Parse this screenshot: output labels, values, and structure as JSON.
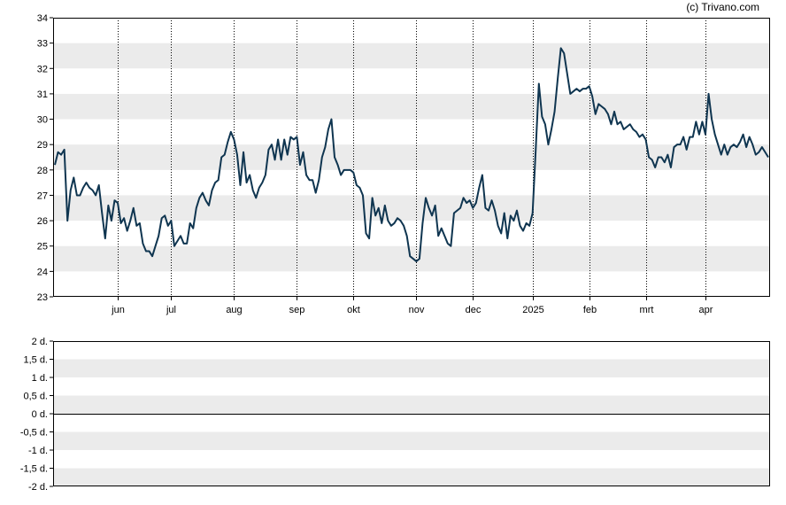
{
  "credit": "(c) Trivano.com",
  "colors": {
    "line": "#0f3550",
    "band": "#ebebeb",
    "grid": "#000000",
    "axis": "#000000",
    "background": "#ffffff"
  },
  "chart_data": [
    {
      "type": "line",
      "title": "",
      "xlabel": "",
      "ylabel": "",
      "ylim": [
        23,
        34
      ],
      "yticks": [
        "23",
        "24",
        "25",
        "26",
        "27",
        "28",
        "29",
        "30",
        "31",
        "32",
        "33",
        "34"
      ],
      "xticks": [
        {
          "label": "jun",
          "index": 20
        },
        {
          "label": "jul",
          "index": 37
        },
        {
          "label": "aug",
          "index": 57
        },
        {
          "label": "sep",
          "index": 77
        },
        {
          "label": "okt",
          "index": 95
        },
        {
          "label": "nov",
          "index": 115
        },
        {
          "label": "dec",
          "index": 133
        },
        {
          "label": "2025",
          "index": 152
        },
        {
          "label": "feb",
          "index": 170
        },
        {
          "label": "mrt",
          "index": 188
        },
        {
          "label": "apr",
          "index": 207
        }
      ],
      "grid": true,
      "legend": "none",
      "series": [
        {
          "values": [
            28.2,
            28.7,
            28.6,
            28.8,
            26.0,
            27.2,
            27.7,
            27.0,
            27.0,
            27.3,
            27.5,
            27.3,
            27.2,
            27.0,
            27.4,
            26.3,
            25.3,
            26.6,
            26.0,
            26.8,
            26.7,
            25.9,
            26.1,
            25.6,
            26.0,
            26.5,
            25.8,
            25.9,
            25.1,
            24.8,
            24.8,
            24.6,
            25.0,
            25.4,
            26.1,
            26.2,
            25.8,
            26.0,
            25.0,
            25.2,
            25.4,
            25.1,
            25.1,
            25.9,
            25.7,
            26.5,
            26.9,
            27.1,
            26.8,
            26.6,
            27.2,
            27.5,
            27.6,
            28.5,
            28.6,
            29.1,
            29.5,
            29.2,
            28.6,
            27.4,
            28.7,
            27.5,
            27.8,
            27.2,
            26.9,
            27.3,
            27.5,
            27.8,
            28.8,
            29.0,
            28.4,
            29.2,
            28.4,
            29.2,
            28.6,
            29.3,
            29.2,
            29.3,
            28.2,
            28.7,
            27.8,
            27.6,
            27.6,
            27.1,
            27.6,
            28.5,
            28.9,
            29.6,
            30.0,
            28.5,
            28.2,
            27.8,
            28.0,
            28.0,
            28.0,
            27.9,
            27.4,
            27.3,
            27.0,
            25.5,
            25.3,
            26.9,
            26.2,
            26.5,
            25.9,
            26.6,
            26.0,
            25.8,
            25.9,
            26.1,
            26.0,
            25.8,
            25.4,
            24.6,
            24.5,
            24.4,
            24.5,
            25.9,
            26.9,
            26.5,
            26.2,
            26.6,
            25.4,
            25.7,
            25.4,
            25.1,
            25.0,
            26.3,
            26.4,
            26.5,
            26.9,
            26.7,
            26.8,
            26.5,
            26.7,
            27.3,
            27.8,
            26.5,
            26.4,
            26.8,
            26.4,
            25.8,
            25.5,
            26.3,
            25.3,
            26.2,
            26.0,
            26.4,
            25.8,
            25.6,
            25.9,
            25.8,
            26.3,
            28.8,
            31.4,
            30.1,
            29.8,
            29.0,
            29.6,
            30.3,
            31.6,
            32.8,
            32.6,
            31.8,
            31.0,
            31.1,
            31.2,
            31.1,
            31.2,
            31.2,
            31.3,
            30.9,
            30.2,
            30.6,
            30.5,
            30.4,
            30.2,
            29.8,
            30.3,
            29.8,
            29.9,
            29.6,
            29.7,
            29.8,
            29.6,
            29.5,
            29.3,
            29.4,
            29.2,
            28.5,
            28.4,
            28.1,
            28.5,
            28.5,
            28.3,
            28.6,
            28.1,
            28.9,
            29.0,
            29.0,
            29.3,
            28.8,
            29.3,
            29.3,
            29.9,
            29.4,
            29.9,
            29.4,
            31.0,
            30.0,
            29.4,
            29.0,
            28.6,
            29.0,
            28.6,
            28.9,
            29.0,
            28.9,
            29.1,
            29.4,
            28.9,
            29.3,
            29.0,
            28.6,
            28.7,
            28.9,
            28.7,
            28.5
          ]
        }
      ]
    },
    {
      "type": "line",
      "title": "",
      "xlabel": "",
      "ylabel": "",
      "ylim": [
        -2,
        2
      ],
      "yticks": [
        "-2 d.",
        "-1,5 d.",
        "-1 d.",
        "-0,5 d.",
        "0 d.",
        "0,5 d.",
        "1 d.",
        "1,5 d.",
        "2 d."
      ],
      "grid": true,
      "legend": "none",
      "series": []
    }
  ]
}
